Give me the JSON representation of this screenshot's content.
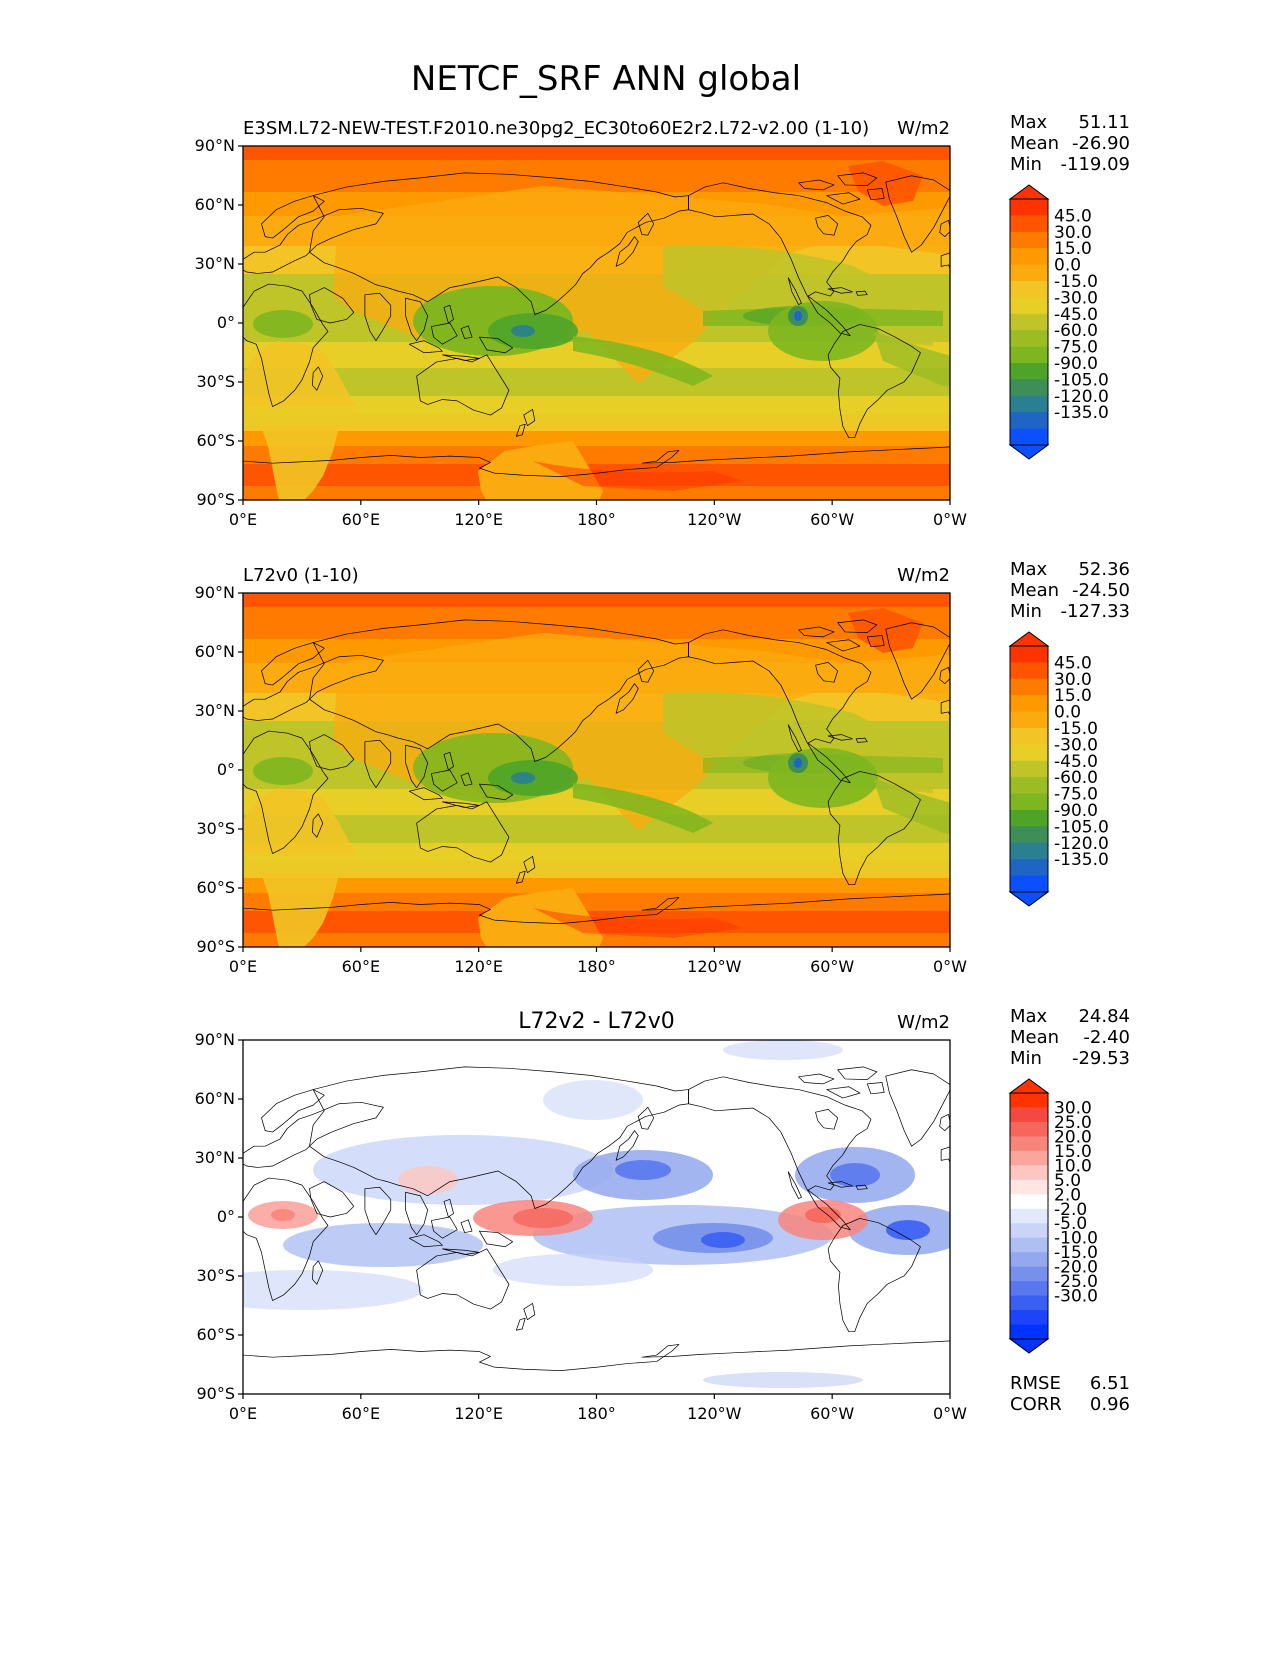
{
  "title": "NETCF_SRF ANN global",
  "colors": {
    "base": [
      "#ff3300",
      "#ff5500",
      "#ff7b00",
      "#ff9900",
      "#fbab0f",
      "#f2c425",
      "#e7cf27",
      "#bfc428",
      "#9cbc24",
      "#7db61f",
      "#4ea428",
      "#3d8e57",
      "#2a7f90",
      "#1f66c4",
      "#0a50ff"
    ],
    "diff": [
      "#ff3300",
      "#f5483f",
      "#f6665c",
      "#f8857c",
      "#fba59d",
      "#fdc7c1",
      "#ffe6e2",
      "#ffffff",
      "#e3e9fb",
      "#c9d4f7",
      "#aebff3",
      "#93a8ef",
      "#7690eb",
      "#5a78ee",
      "#3a5ff3",
      "#1c44f8",
      "#0033ff"
    ]
  },
  "panels": [
    {
      "id": "test",
      "left_title": "E3SM.L72-NEW-TEST.F2010.ne30pg2_EC30to60E2r2.L72-v2.00 (1-10)",
      "center_title": "",
      "units": "W/m2",
      "stats": [
        {
          "label": "Max",
          "value": "51.11"
        },
        {
          "label": "Mean",
          "value": "-26.90"
        },
        {
          "label": "Min",
          "value": "-119.09"
        }
      ],
      "colorbar_labels": [
        "45.0",
        "30.0",
        "15.0",
        "0.0",
        "-15.0",
        "-30.0",
        "-45.0",
        "-60.0",
        "-75.0",
        "-90.0",
        "-105.0",
        "-120.0",
        "-135.0"
      ],
      "extra_stats": []
    },
    {
      "id": "ref",
      "left_title": "L72v0 (1-10)",
      "center_title": "",
      "units": "W/m2",
      "stats": [
        {
          "label": "Max",
          "value": "52.36"
        },
        {
          "label": "Mean",
          "value": "-24.50"
        },
        {
          "label": "Min",
          "value": "-127.33"
        }
      ],
      "colorbar_labels": [
        "45.0",
        "30.0",
        "15.0",
        "0.0",
        "-15.0",
        "-30.0",
        "-45.0",
        "-60.0",
        "-75.0",
        "-90.0",
        "-105.0",
        "-120.0",
        "-135.0"
      ],
      "extra_stats": []
    },
    {
      "id": "diff",
      "left_title": "",
      "center_title": "L72v2 - L72v0",
      "units": "W/m2",
      "stats": [
        {
          "label": "Max",
          "value": "24.84"
        },
        {
          "label": "Mean",
          "value": "-2.40"
        },
        {
          "label": "Min",
          "value": "-29.53"
        }
      ],
      "colorbar_labels": [
        "30.0",
        "25.0",
        "20.0",
        "15.0",
        "10.0",
        "5.0",
        "2.0",
        "-2.0",
        "-5.0",
        "-10.0",
        "-15.0",
        "-20.0",
        "-25.0",
        "-30.0"
      ],
      "extra_stats": [
        {
          "label": "RMSE",
          "value": "6.51"
        },
        {
          "label": "CORR",
          "value": "0.96"
        }
      ]
    }
  ],
  "axes": {
    "x_ticks": [
      "0°E",
      "60°E",
      "120°E",
      "180°",
      "120°W",
      "60°W",
      "0°W"
    ],
    "y_ticks": [
      "90°N",
      "60°N",
      "30°N",
      "0°",
      "30°S",
      "60°S",
      "90°S"
    ]
  }
}
